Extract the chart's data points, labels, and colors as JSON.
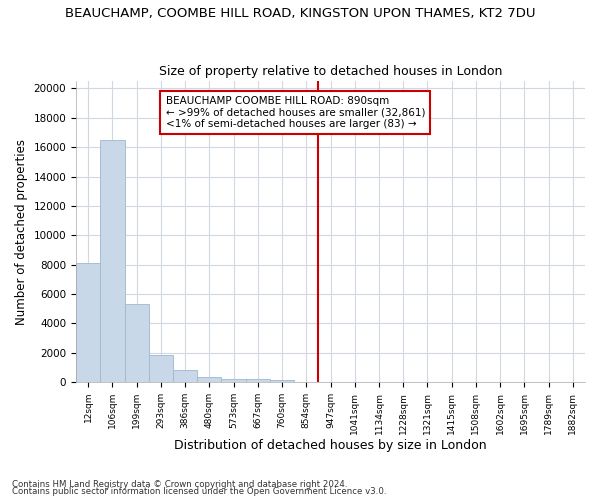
{
  "title": "BEAUCHAMP, COOMBE HILL ROAD, KINGSTON UPON THAMES, KT2 7DU",
  "subtitle": "Size of property relative to detached houses in London",
  "xlabel": "Distribution of detached houses by size in London",
  "ylabel": "Number of detached properties",
  "footer1": "Contains HM Land Registry data © Crown copyright and database right 2024.",
  "footer2": "Contains public sector information licensed under the Open Government Licence v3.0.",
  "bar_values": [
    8100,
    16500,
    5350,
    1850,
    800,
    350,
    225,
    200,
    175,
    0,
    0,
    0,
    0,
    0,
    0,
    0,
    0,
    0,
    0,
    0,
    0
  ],
  "x_labels": [
    "12sqm",
    "106sqm",
    "199sqm",
    "293sqm",
    "386sqm",
    "480sqm",
    "573sqm",
    "667sqm",
    "760sqm",
    "854sqm",
    "947sqm",
    "1041sqm",
    "1134sqm",
    "1228sqm",
    "1321sqm",
    "1415sqm",
    "1508sqm",
    "1602sqm",
    "1695sqm",
    "1789sqm",
    "1882sqm"
  ],
  "bar_color": "#c8d8e8",
  "bar_edge_color": "#a0b8cc",
  "vline_x": 9.5,
  "vline_color": "#cc0000",
  "annotation_title": "BEAUCHAMP COOMBE HILL ROAD: 890sqm",
  "annotation_line1": "← >99% of detached houses are smaller (32,861)",
  "annotation_line2": "<1% of semi-detached houses are larger (83) →",
  "annotation_box_color": "#cc0000",
  "ylim": [
    0,
    20500
  ],
  "yticks": [
    0,
    2000,
    4000,
    6000,
    8000,
    10000,
    12000,
    14000,
    16000,
    18000,
    20000
  ],
  "bg_color": "#ffffff",
  "grid_color": "#d0d8e4",
  "title_fontsize": 9.5,
  "subtitle_fontsize": 9
}
